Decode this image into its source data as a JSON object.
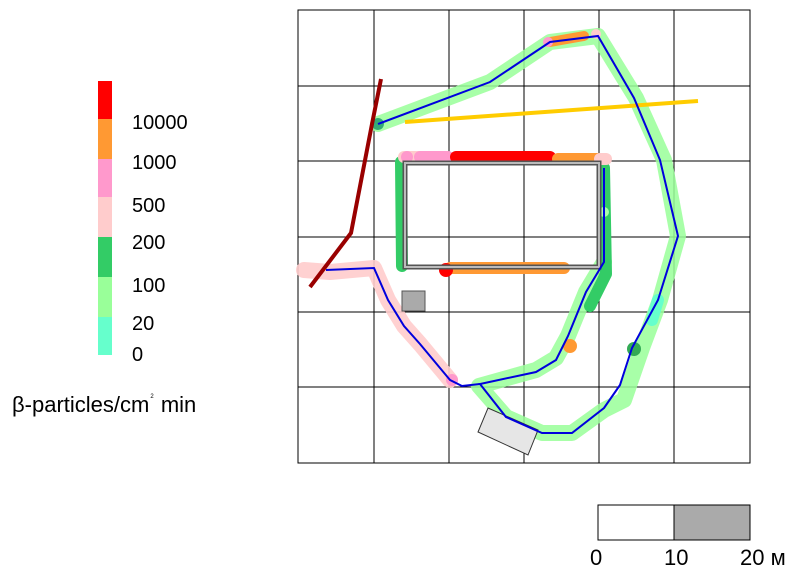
{
  "legend": {
    "items": [
      {
        "label": "10000",
        "color": "#ff0000"
      },
      {
        "label": "1000",
        "color": "#ff9933"
      },
      {
        "label": "500",
        "color": "#ff99cc"
      },
      {
        "label": "200",
        "color": "#ffcccc"
      },
      {
        "label": "100",
        "color": "#33cc66"
      },
      {
        "label": "20",
        "color": "#99ff99"
      },
      {
        "label": "0",
        "color": "#66ffcc"
      }
    ],
    "unit_prefix": "β-particles/cm",
    "unit_superscript": "2",
    "unit_suffix": "min"
  },
  "scale_bar": {
    "labels": [
      "0",
      "10",
      "20 м"
    ],
    "segment_colors": [
      "#ffffff",
      "#aaaaaa"
    ]
  },
  "map": {
    "grid_rows": 6,
    "grid_cols": 6,
    "route_color": "#0000dd",
    "fence_color": "#999999",
    "line_dark_red": "#990000",
    "line_yellow": "#ffcc00"
  }
}
